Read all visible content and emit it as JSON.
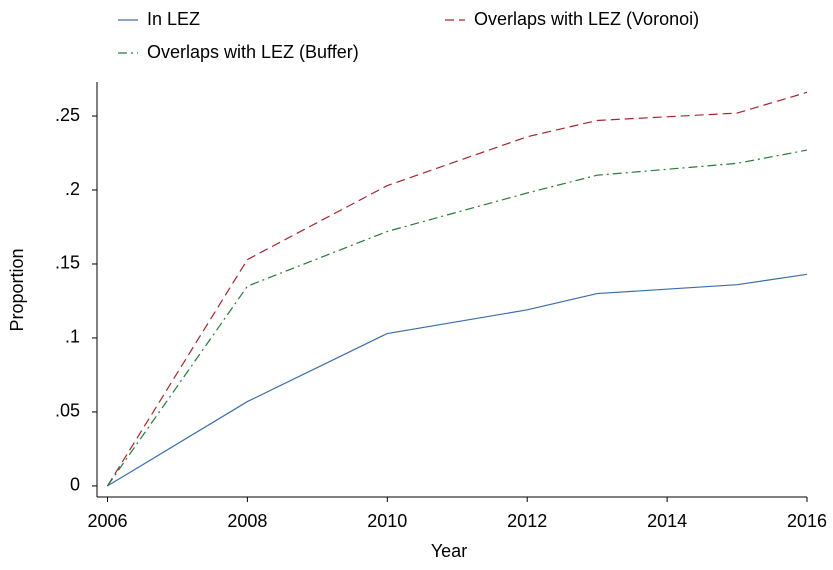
{
  "chart_data": {
    "type": "line",
    "x": [
      2006,
      2008,
      2010,
      2012,
      2013,
      2015,
      2016
    ],
    "series": [
      {
        "name": "In LEZ",
        "color": "#3b6ea8",
        "dash": "solid",
        "values": [
          0,
          0.057,
          0.103,
          0.119,
          0.13,
          0.136,
          0.143
        ]
      },
      {
        "name": "Overlaps with LEZ (Voronoi)",
        "color": "#a3282f",
        "dash": "dash",
        "values": [
          0,
          0.153,
          0.203,
          0.236,
          0.247,
          0.252,
          0.266
        ]
      },
      {
        "name": "Overlaps with LEZ (Buffer)",
        "color": "#2b7a3b",
        "dash": "dashdot",
        "values": [
          0,
          0.135,
          0.172,
          0.198,
          0.21,
          0.218,
          0.227
        ]
      }
    ],
    "x_label": "Year",
    "y_label": "Proportion",
    "xlim": [
      2005.85,
      2016
    ],
    "ylim": [
      -0.0075,
      0.273
    ],
    "xticks": [
      2006,
      2008,
      2010,
      2012,
      2014,
      2016
    ],
    "yticks": [
      0,
      {
        "value": 0.05,
        "label": ".05"
      },
      {
        "value": 0.1,
        "label": ".1"
      },
      {
        "value": 0.15,
        "label": ".15"
      },
      {
        "value": 0.2,
        "label": ".2"
      },
      {
        "value": 0.25,
        "label": ".25"
      }
    ],
    "grid": false
  }
}
